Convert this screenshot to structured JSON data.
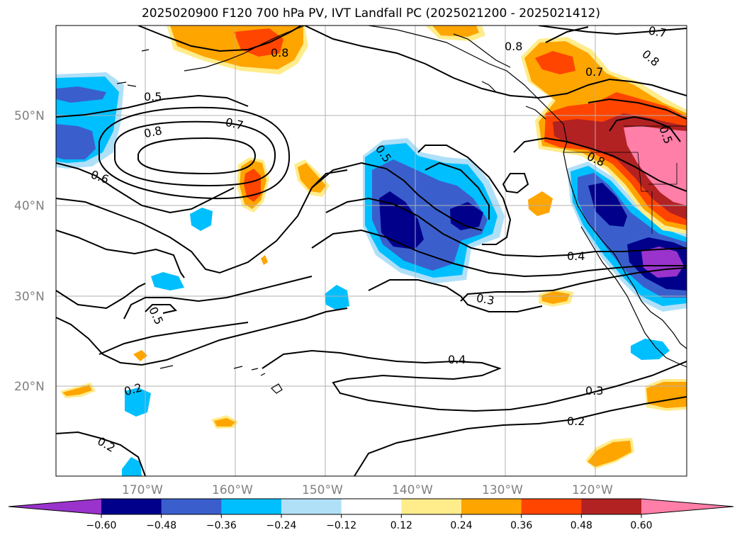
{
  "title": "2025020900 F120 700 hPa PV, IVT Landfall PC (2025021200 - 2025021412)",
  "latitude_labels": [
    "50°N",
    "40°N",
    "30°N",
    "20°N"
  ],
  "longitude_labels": [
    "170°W",
    "160°W",
    "150°W",
    "140°W",
    "130°W",
    "120°W"
  ],
  "contour_labels": [
    "0.5",
    "0.8",
    "0.7",
    "0.6",
    "0.8",
    "0.7",
    "0.8",
    "0.5",
    "0.8",
    "0.4",
    "0.3",
    "0.4",
    "0.3",
    "0.2",
    "0.2",
    "0.5",
    "0.2",
    "0.5",
    "0.7",
    "0.8"
  ],
  "colorbar": {
    "tick_labels": [
      "−0.60",
      "−0.48",
      "−0.36",
      "−0.24",
      "−0.12",
      "0.12",
      "0.24",
      "0.36",
      "0.48",
      "0.60"
    ],
    "colors": {
      "under": "#9933cc",
      "bins": [
        "#9933cc",
        "#00008b",
        "#3a5fcd",
        "#00bfff",
        "#b0e0f8",
        "#ffffff",
        "#ffec8b",
        "#ffa500",
        "#ff4500",
        "#b22222",
        "#ff7fa8"
      ],
      "over": "#ff7fa8"
    }
  },
  "shading_colors": {
    "dark_purple": "#9933cc",
    "navy": "#00008b",
    "royal_blue": "#3a5fcd",
    "deep_sky": "#00bfff",
    "light_blue": "#b0e0f8",
    "light_yellow": "#ffec8b",
    "orange": "#ffa500",
    "red_orange": "#ff4500",
    "firebrick": "#b22222",
    "pink": "#ff7fa8"
  }
}
